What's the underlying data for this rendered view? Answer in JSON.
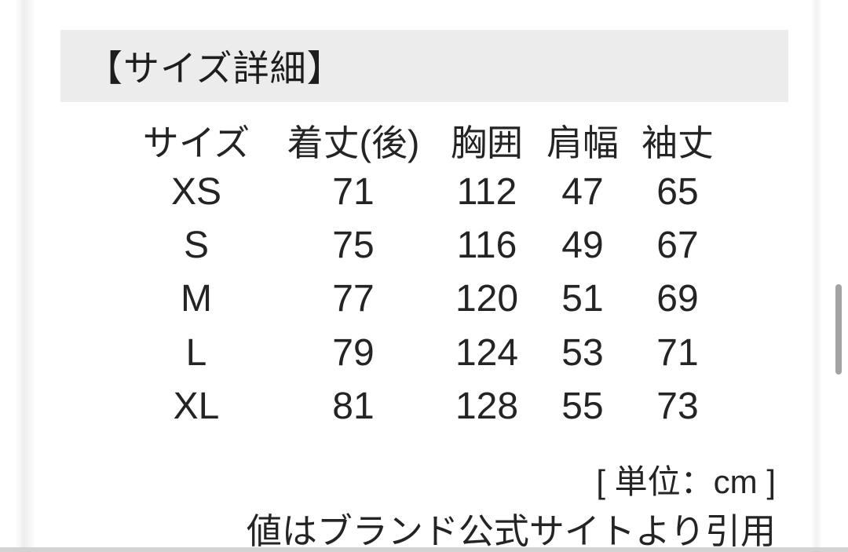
{
  "header": {
    "title": "【サイズ詳細】"
  },
  "size_table": {
    "columns": [
      "サイズ",
      "着丈(後)",
      "胸囲",
      "肩幅",
      "袖丈"
    ],
    "rows": [
      {
        "size": "XS",
        "values": [
          71,
          112,
          47,
          65
        ]
      },
      {
        "size": "S",
        "values": [
          75,
          116,
          49,
          67
        ]
      },
      {
        "size": "M",
        "values": [
          77,
          120,
          51,
          69
        ]
      },
      {
        "size": "L",
        "values": [
          79,
          124,
          53,
          71
        ]
      },
      {
        "size": "XL",
        "values": [
          81,
          128,
          55,
          73
        ]
      }
    ]
  },
  "notes": {
    "unit_label": "[ 単位：cm ]",
    "source": "値はブランド公式サイトより引用"
  },
  "colors": {
    "page_bg": "#ffffff",
    "header_band_bg": "#ececec",
    "text": "#242424",
    "scrollbar_thumb": "#a3a3a3",
    "bottom_edge_bar": "#d3d3d3"
  }
}
